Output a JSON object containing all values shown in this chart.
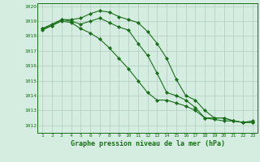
{
  "x": [
    1,
    2,
    3,
    4,
    5,
    6,
    7,
    8,
    9,
    10,
    11,
    12,
    13,
    14,
    15,
    16,
    17,
    18,
    19,
    20,
    21,
    22,
    23
  ],
  "line1": [
    1018.5,
    1018.8,
    1019.1,
    1019.1,
    1019.2,
    1019.5,
    1019.7,
    1019.6,
    1019.3,
    1019.1,
    1018.9,
    1018.3,
    1017.5,
    1016.5,
    1015.1,
    1014.0,
    1013.7,
    1013.0,
    1012.5,
    1012.5,
    1012.3,
    1012.2,
    1012.3
  ],
  "line2": [
    1018.5,
    1018.7,
    1019.1,
    1019.0,
    1018.8,
    1019.0,
    1019.2,
    1018.9,
    1018.6,
    1018.4,
    1017.5,
    1016.7,
    1015.5,
    1014.2,
    1014.0,
    1013.7,
    1013.2,
    1012.5,
    1012.5,
    1012.5,
    1012.3,
    1012.2,
    1012.2
  ],
  "line3": [
    1018.4,
    1018.7,
    1019.0,
    1018.9,
    1018.5,
    1018.2,
    1017.8,
    1017.2,
    1016.5,
    1015.8,
    1015.0,
    1014.2,
    1013.7,
    1013.7,
    1013.5,
    1013.3,
    1013.0,
    1012.5,
    1012.4,
    1012.3,
    1012.3,
    1012.2,
    1012.2
  ],
  "ylim": [
    1011.5,
    1020.2
  ],
  "yticks": [
    1012,
    1013,
    1014,
    1015,
    1016,
    1017,
    1018,
    1019,
    1020
  ],
  "xlim": [
    0.5,
    23.5
  ],
  "line_color": "#1a6e1a",
  "bg_color": "#d4ede0",
  "grid_color": "#b0ccbe",
  "xlabel": "Graphe pression niveau de la mer (hPa)",
  "marker": "D",
  "marker_size": 2,
  "linewidth": 0.8
}
